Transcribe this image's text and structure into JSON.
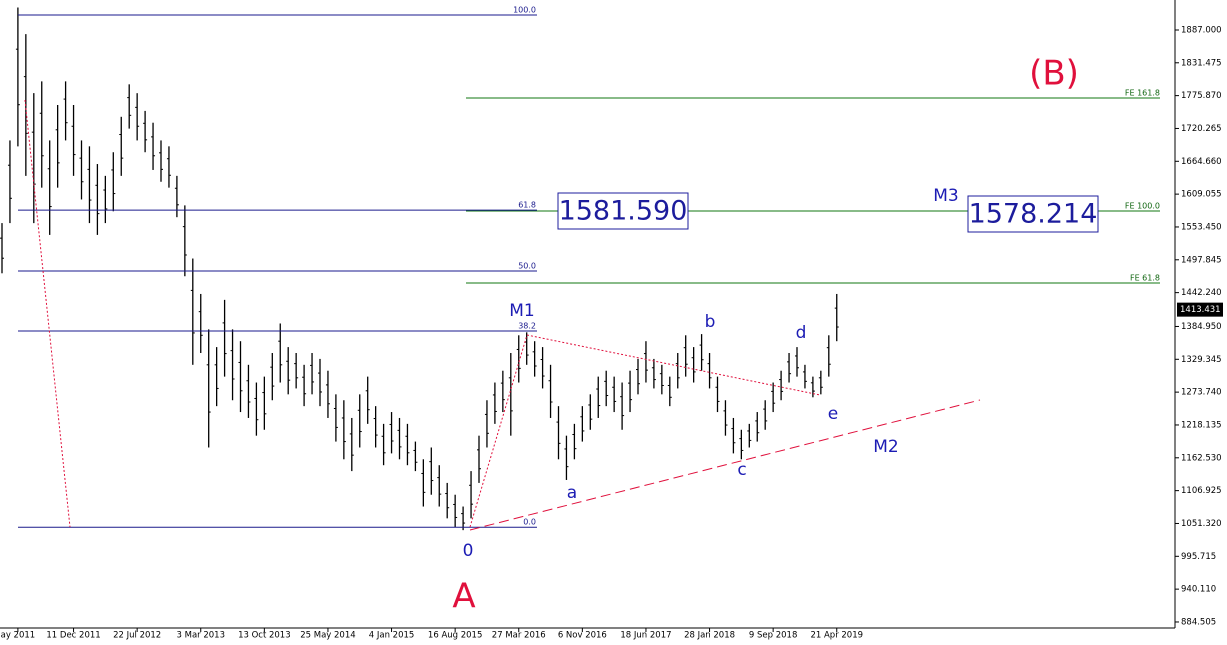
{
  "chart_data": {
    "type": "ohlc",
    "color": "#000000",
    "categories": [
      null,
      null,
      "ay 2011",
      null,
      null,
      null,
      null,
      null,
      null,
      "11 Dec 2011",
      null,
      null,
      null,
      null,
      null,
      null,
      null,
      "22 Jul 2012",
      null,
      null,
      null,
      null,
      null,
      null,
      null,
      "3 Mar 2013",
      null,
      null,
      null,
      null,
      null,
      null,
      null,
      "13 Oct 2013",
      null,
      null,
      null,
      null,
      null,
      null,
      null,
      "25 May 2014",
      null,
      null,
      null,
      null,
      null,
      null,
      null,
      "4 Jan 2015",
      null,
      null,
      null,
      null,
      null,
      null,
      null,
      "16 Aug 2015",
      null,
      null,
      null,
      null,
      null,
      null,
      null,
      "27 Mar 2016",
      null,
      null,
      null,
      null,
      null,
      null,
      null,
      "6 Nov 2016",
      null,
      null,
      null,
      null,
      null,
      null,
      null,
      "18 Jun 2017",
      null,
      null,
      null,
      null,
      null,
      null,
      null,
      "28 Jan 2018",
      null,
      null,
      null,
      null,
      null,
      null,
      null,
      "9 Sep 2018",
      null,
      null,
      null,
      null,
      null,
      null,
      null,
      "21 Apr 2019"
    ],
    "high": [
      1560,
      1700,
      1925,
      1880,
      1780,
      1800,
      1700,
      1760,
      1800,
      1760,
      1700,
      1690,
      1660,
      1640,
      1680,
      1740,
      1795,
      1780,
      1750,
      1730,
      1700,
      1690,
      1640,
      1590,
      1500,
      1440,
      1380,
      1350,
      1430,
      1380,
      1360,
      1320,
      1290,
      1300,
      1340,
      1390,
      1350,
      1340,
      1320,
      1340,
      1330,
      1310,
      1270,
      1260,
      1230,
      1270,
      1300,
      1250,
      1220,
      1240,
      1230,
      1220,
      1190,
      1160,
      1180,
      1150,
      1120,
      1100,
      1080,
      1140,
      1200,
      1260,
      1290,
      1310,
      1340,
      1370,
      1375,
      1360,
      1350,
      1320,
      1250,
      1200,
      1220,
      1250,
      1270,
      1300,
      1310,
      1300,
      1290,
      1310,
      1330,
      1360,
      1330,
      1320,
      1300,
      1340,
      1370,
      1350,
      1372,
      1340,
      1300,
      1260,
      1230,
      1210,
      1220,
      1240,
      1260,
      1290,
      1310,
      1340,
      1350,
      1320,
      1300,
      1310,
      1370,
      1440
    ],
    "low": [
      1475,
      1560,
      1690,
      1640,
      1560,
      1620,
      1540,
      1620,
      1700,
      1640,
      1600,
      1560,
      1540,
      1560,
      1580,
      1640,
      1720,
      1700,
      1680,
      1650,
      1630,
      1620,
      1570,
      1470,
      1320,
      1340,
      1180,
      1250,
      1300,
      1260,
      1240,
      1230,
      1200,
      1210,
      1260,
      1290,
      1270,
      1280,
      1250,
      1270,
      1250,
      1230,
      1190,
      1160,
      1140,
      1180,
      1220,
      1180,
      1150,
      1170,
      1160,
      1150,
      1140,
      1080,
      1100,
      1080,
      1060,
      1045,
      1040,
      1060,
      1120,
      1180,
      1220,
      1240,
      1200,
      1290,
      1320,
      1300,
      1280,
      1230,
      1160,
      1125,
      1160,
      1190,
      1210,
      1230,
      1250,
      1240,
      1210,
      1240,
      1270,
      1290,
      1280,
      1270,
      1250,
      1280,
      1300,
      1290,
      1310,
      1280,
      1240,
      1200,
      1170,
      1160,
      1180,
      1190,
      1210,
      1240,
      1260,
      1290,
      1300,
      1280,
      1265,
      1270,
      1300,
      1360
    ],
    "ylim": [
      874.3,
      1937.8
    ],
    "yticks": [
      {
        "value": 1887,
        "label": "1887.000"
      },
      1831.475,
      {
        "value": 1775.87,
        "label": "1775.870"
      },
      1720.265,
      {
        "value": 1664.66,
        "label": "1664.660"
      },
      1609.055,
      {
        "value": 1553.45,
        "label": "1553.450"
      },
      1497.845,
      {
        "value": 1442.24,
        "label": "1442.240"
      },
      {
        "value": 1384.95,
        "label": "1384.950"
      },
      1329.345,
      {
        "value": 1273.74,
        "label": "1273.740"
      },
      1218.135,
      {
        "value": 1162.53,
        "label": "1162.530"
      },
      1106.925,
      {
        "value": 1051.32,
        "label": "1051.320"
      },
      995.715,
      {
        "value": 940.11,
        "label": "940.110"
      },
      884.505
    ],
    "current_price": 1413.431,
    "fib_levels": [
      {
        "label": "100.0",
        "price": 1912.4
      },
      {
        "label": "61.8",
        "price": 1582
      },
      {
        "label": "50.0",
        "price": 1478.9
      },
      {
        "label": "38.2",
        "price": 1377.3
      },
      {
        "label": "0.0",
        "price": 1045
      }
    ],
    "fe_levels": [
      {
        "label": "FE 161.8",
        "price": 1771.8
      },
      {
        "label": "FE 100.0",
        "price": 1580.5
      },
      {
        "label": "FE 61.8",
        "price": 1458.5
      }
    ],
    "price_boxes": [
      {
        "value": 1581.59,
        "label": "1581.590"
      },
      1578.214
    ],
    "wave_labels": {
      "M1": "M1",
      "M2": "M2",
      "M3": "M3",
      "a": "a",
      "b": "b",
      "c": "c",
      "d": "d",
      "e": "e",
      "zero": "0"
    },
    "big_labels": {
      "A": "A",
      "B": "(B)"
    }
  }
}
